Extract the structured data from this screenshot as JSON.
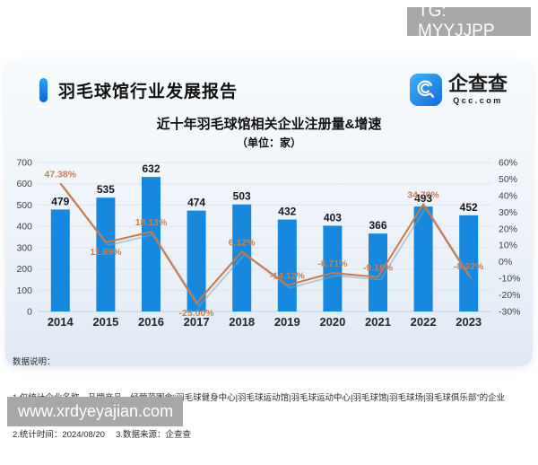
{
  "watermarks": {
    "top": "TG: MYYJJPP",
    "bottom": "www.xrdyeyajian.com"
  },
  "header": {
    "report_title": "羽毛球馆行业发展报告",
    "accent_color": "#1283f0",
    "logo": {
      "icon": "qcc-magnifier-icon",
      "brand": "企查查",
      "domain": "Qcc.com"
    }
  },
  "chart_data": {
    "type": "bar",
    "title": "近十年羽毛球馆相关企业注册量&增速",
    "subtitle": "（单位：家）",
    "categories": [
      "2014",
      "2015",
      "2016",
      "2017",
      "2018",
      "2019",
      "2020",
      "2021",
      "2022",
      "2023"
    ],
    "series": [
      {
        "name": "注册量（家）",
        "type": "bar",
        "axis": "left",
        "color": "#1689df",
        "values": [
          479,
          535,
          632,
          474,
          503,
          432,
          403,
          366,
          493,
          452
        ]
      },
      {
        "name": "增速",
        "type": "line",
        "axis": "right",
        "color": "#c8794a",
        "values": [
          47.38,
          11.69,
          18.13,
          -25.0,
          6.12,
          -14.12,
          -6.71,
          -9.18,
          34.7,
          -8.32
        ],
        "point_labels": [
          "47.38%",
          "11.69%",
          "18.13%",
          "-25.00%",
          "6.12%",
          "-14.12%",
          "-6.71%",
          "-9.18%",
          "34.70%",
          "-8.32%"
        ],
        "label_positions": [
          "above",
          "below",
          "above",
          "below",
          "above",
          "above",
          "above",
          "above",
          "above",
          "above"
        ]
      }
    ],
    "left_axis": {
      "min": 0,
      "max": 700,
      "ticks": [
        700,
        600,
        500,
        400,
        300,
        200,
        100,
        0
      ]
    },
    "right_axis": {
      "min": -30,
      "max": 60,
      "ticks": [
        "60%",
        "50%",
        "40%",
        "30%",
        "20%",
        "10%",
        "0%",
        "-10%",
        "-20%",
        "-30%"
      ]
    },
    "grid": true,
    "legend": "none"
  },
  "notes": {
    "heading": "数据说明：",
    "line1": "1.仅统计企业名称、品牌产品、经营范围含“羽毛球健身中心|羽毛球运动馆|羽毛球运动中心|羽毛球馆|羽毛球场|羽毛球俱乐部”的企业",
    "line2": "2.统计时间：2024/08/20　 3.数据来源：企查查"
  }
}
